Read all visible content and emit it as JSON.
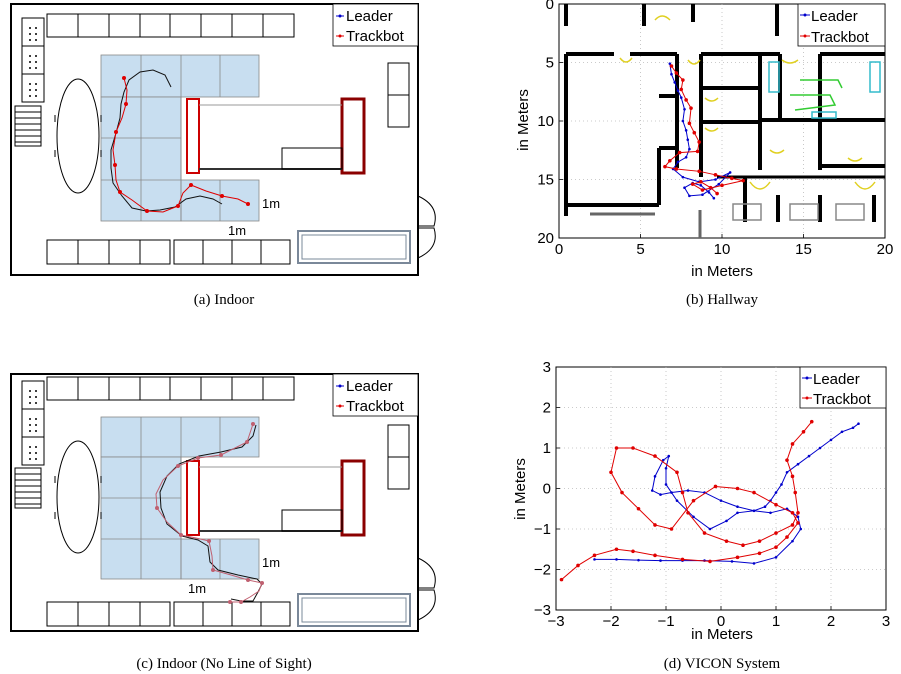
{
  "colors": {
    "leader": "#0000cc",
    "trackbot": "#e00000",
    "tile": "#c8def0",
    "indoor_leader": "#111111"
  },
  "legend": {
    "leader": "Leader",
    "trackbot": "Trackbot"
  },
  "captions": {
    "a": "(a) Indoor",
    "b": "(b) Hallway",
    "c": "(c) Indoor (No Line of Sight)",
    "d": "(d) VICON System"
  },
  "indoor_a": {
    "scale_x": "1m",
    "scale_y": "1m"
  },
  "indoor_c": {
    "scale_x": "1m",
    "scale_y": "1m"
  },
  "chart_data": [
    {
      "id": "hallway",
      "type": "line",
      "xlabel": "in Meters",
      "ylabel": "in Meters",
      "xlim": [
        0,
        20
      ],
      "ylim": [
        20,
        0
      ],
      "xticks": [
        "0",
        "5",
        "10",
        "15",
        "20"
      ],
      "yticks": [
        "0",
        "5",
        "10",
        "15",
        "20"
      ],
      "grid": true,
      "legend_position": "top-right",
      "series": [
        {
          "name": "Leader",
          "x": [
            6.8,
            6.9,
            7.1,
            7.3,
            7.5,
            7.7,
            7.6,
            7.8,
            7.9,
            8.0,
            7.8,
            7.3,
            7.0,
            7.6,
            8.6,
            9.6,
            10.5,
            9.8,
            8.8,
            8.0,
            7.7,
            8.2,
            8.7,
            9.2,
            9.5
          ],
          "y": [
            5.1,
            6.0,
            6.7,
            7.4,
            8.0,
            9.0,
            10.0,
            10.8,
            11.6,
            12.4,
            13.1,
            13.5,
            14.1,
            14.8,
            15.2,
            15.0,
            14.4,
            15.4,
            16.3,
            16.4,
            15.7,
            15.3,
            15.5,
            16.1,
            16.6
          ]
        },
        {
          "name": "Trackbot",
          "x": [
            6.9,
            7.2,
            7.6,
            7.5,
            7.8,
            8.1,
            8.0,
            8.3,
            8.6,
            8.5,
            7.4,
            6.8,
            6.5,
            7.2,
            8.6,
            9.6,
            10.6,
            11.3,
            10.0,
            8.8,
            8.2,
            8.7,
            9.3,
            9.7
          ],
          "y": [
            5.3,
            5.9,
            6.5,
            7.3,
            8.2,
            8.9,
            10.2,
            11.0,
            11.8,
            12.6,
            12.7,
            13.4,
            13.9,
            14.1,
            14.3,
            14.6,
            14.9,
            15.1,
            15.5,
            15.9,
            15.4,
            15.2,
            15.7,
            16.2
          ]
        }
      ]
    },
    {
      "id": "vicon",
      "type": "line",
      "xlabel": "in Meters",
      "ylabel": "in Meters",
      "xlim": [
        -3,
        3
      ],
      "ylim": [
        -3,
        3
      ],
      "xticks": [
        "−3",
        "−2",
        "−1",
        "0",
        "1",
        "2",
        "3"
      ],
      "yticks": [
        "3",
        "2",
        "1",
        "0",
        "−1",
        "−2",
        "−3"
      ],
      "grid": true,
      "legend_position": "top-right",
      "series": [
        {
          "name": "Leader",
          "x": [
            2.5,
            2.4,
            2.2,
            2.0,
            1.8,
            1.6,
            1.4,
            1.2,
            1.1,
            1.0,
            0.9,
            0.8,
            0.6,
            0.3,
            0.1,
            -0.2,
            -0.5,
            -0.8,
            -1.0,
            -1.0,
            -0.95,
            -1.05,
            -1.2,
            -1.25,
            -1.1,
            -0.9,
            -0.6,
            -0.3,
            0.0,
            0.3,
            0.6,
            0.9,
            1.2,
            1.4,
            1.45,
            1.3,
            1.0,
            0.6,
            0.2,
            -0.3,
            -0.7,
            -1.1,
            -1.5,
            -1.9,
            -2.3
          ],
          "y": [
            1.6,
            1.5,
            1.4,
            1.2,
            1.0,
            0.8,
            0.6,
            0.4,
            0.1,
            -0.1,
            -0.3,
            -0.45,
            -0.55,
            -0.6,
            -0.8,
            -1.0,
            -0.7,
            -0.3,
            0.1,
            0.5,
            0.8,
            0.7,
            0.3,
            -0.05,
            -0.15,
            -0.1,
            -0.05,
            -0.1,
            -0.3,
            -0.45,
            -0.55,
            -0.6,
            -0.5,
            -0.7,
            -1.0,
            -1.3,
            -1.7,
            -1.85,
            -1.8,
            -1.78,
            -1.78,
            -1.78,
            -1.77,
            -1.75,
            -1.75
          ]
        },
        {
          "name": "Trackbot",
          "x": [
            1.65,
            1.5,
            1.3,
            1.2,
            1.3,
            1.35,
            1.4,
            1.3,
            1.0,
            0.7,
            0.4,
            0.1,
            -0.3,
            -0.6,
            -0.7,
            -0.8,
            -1.2,
            -1.6,
            -1.9,
            -2.0,
            -1.8,
            -1.5,
            -1.2,
            -0.9,
            -0.5,
            -0.1,
            0.3,
            0.6,
            1.0,
            1.3,
            1.4,
            1.2,
            1.0,
            0.7,
            0.3,
            -0.2,
            -0.7,
            -1.2,
            -1.6,
            -1.9,
            -2.3,
            -2.6,
            -2.9
          ],
          "y": [
            1.65,
            1.4,
            1.1,
            0.7,
            0.3,
            -0.1,
            -0.6,
            -0.9,
            -1.1,
            -1.3,
            -1.4,
            -1.3,
            -1.1,
            -0.6,
            -0.1,
            0.4,
            0.8,
            1.0,
            1.0,
            0.4,
            -0.1,
            -0.5,
            -0.9,
            -1.0,
            -0.3,
            0.05,
            0.0,
            -0.1,
            -0.4,
            -0.6,
            -0.85,
            -1.2,
            -1.45,
            -1.6,
            -1.7,
            -1.8,
            -1.75,
            -1.65,
            -1.55,
            -1.5,
            -1.65,
            -1.9,
            -2.25
          ]
        }
      ]
    }
  ]
}
